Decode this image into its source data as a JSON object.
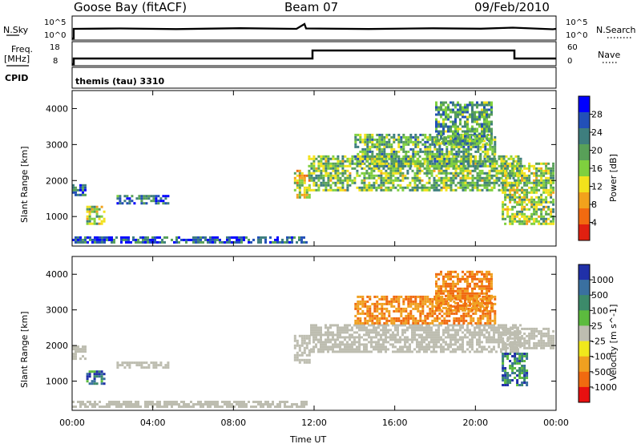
{
  "header": {
    "station": "Goose Bay (fitACF)",
    "beam": "Beam 07",
    "date": "09/Feb/2010"
  },
  "strip_labels": {
    "nsky": "N.Sky",
    "nsky_hi": "10^5",
    "nsky_lo": "10^0",
    "nsearch": "N.Search",
    "freq": "Freq.",
    "freq_unit": "[MHz]",
    "freq_hi": "18",
    "freq_lo": "8",
    "nave": "Nave",
    "nave_hi": "60",
    "nave_lo": "0",
    "cpid_label": "CPID",
    "cpid_value": "themis (tau) 3310"
  },
  "colors": {
    "power_scale": [
      "#0000ff",
      "#2250b8",
      "#3e7e7e",
      "#58a058",
      "#7fd03e",
      "#f2e21c",
      "#f2a21c",
      "#f26a10",
      "#e02010"
    ],
    "velocity_scale": [
      "#2030a8",
      "#3a70a0",
      "#3c8a6a",
      "#5cbb3e",
      "#bdbdb0",
      "#f0e81c",
      "#f0a020",
      "#f06a10",
      "#e81010"
    ],
    "ground_scatter": "#bdbdb0"
  },
  "chart_data": [
    {
      "type": "heatmap",
      "name": "power",
      "xlabel": "",
      "ylabel": "Slant Range [km]",
      "x_ticks": [
        "00:00",
        "04:00",
        "08:00",
        "12:00",
        "16:00",
        "20:00",
        "00:00"
      ],
      "y_ticks": [
        1000,
        2000,
        3000,
        4000
      ],
      "xlim_hours": [
        0,
        24
      ],
      "ylim_km": [
        180,
        4500
      ],
      "colorbar": {
        "label": "Power [dB]",
        "ticks": [
          "28",
          "24",
          "20",
          "16",
          "12",
          "8",
          "4"
        ]
      },
      "regions": [
        {
          "t": [
            0.0,
            11.6
          ],
          "r": [
            250,
            450
          ],
          "level": 0.15
        },
        {
          "t": [
            0.0,
            0.6
          ],
          "r": [
            1600,
            1900
          ],
          "level": 0.25
        },
        {
          "t": [
            0.7,
            1.6
          ],
          "r": [
            800,
            1300
          ],
          "level": 0.5
        },
        {
          "t": [
            2.2,
            4.8
          ],
          "r": [
            1350,
            1600
          ],
          "level": 0.2
        },
        {
          "t": [
            11.0,
            11.8
          ],
          "r": [
            1500,
            2300
          ],
          "level": 0.6
        },
        {
          "t": [
            11.7,
            22.2
          ],
          "r": [
            1700,
            2700
          ],
          "level": 0.45
        },
        {
          "t": [
            14.0,
            21.0
          ],
          "r": [
            2400,
            3300
          ],
          "level": 0.4
        },
        {
          "t": [
            18.0,
            20.8
          ],
          "r": [
            3000,
            4200
          ],
          "level": 0.35
        },
        {
          "t": [
            21.3,
            23.9
          ],
          "r": [
            800,
            2500
          ],
          "level": 0.5
        }
      ]
    },
    {
      "type": "heatmap",
      "name": "velocity",
      "xlabel": "Time UT",
      "ylabel": "Slant Range [km]",
      "x_ticks": [
        "00:00",
        "04:00",
        "08:00",
        "12:00",
        "16:00",
        "20:00",
        "00:00"
      ],
      "y_ticks": [
        1000,
        2000,
        3000,
        4000
      ],
      "xlim_hours": [
        0,
        24
      ],
      "ylim_km": [
        180,
        4500
      ],
      "colorbar": {
        "label": "Velocity [m s^-1]",
        "ticks": [
          "1000",
          "500",
          "100",
          "25",
          "-25",
          "-100",
          "-500",
          "-1000"
        ]
      },
      "regions": [
        {
          "t": [
            0.0,
            11.6
          ],
          "r": [
            250,
            450
          ],
          "kind": "ground"
        },
        {
          "t": [
            0.0,
            0.6
          ],
          "r": [
            1600,
            2000
          ],
          "kind": "ground"
        },
        {
          "t": [
            0.7,
            1.6
          ],
          "r": [
            900,
            1300
          ],
          "kind": "flow"
        },
        {
          "t": [
            2.2,
            4.8
          ],
          "r": [
            1350,
            1550
          ],
          "kind": "ground"
        },
        {
          "t": [
            11.0,
            11.8
          ],
          "r": [
            1500,
            2300
          ],
          "kind": "ground"
        },
        {
          "t": [
            11.8,
            22.2
          ],
          "r": [
            1800,
            2600
          ],
          "kind": "ground"
        },
        {
          "t": [
            14.0,
            21.0
          ],
          "r": [
            2600,
            3400
          ],
          "kind": "toward"
        },
        {
          "t": [
            18.0,
            20.8
          ],
          "r": [
            3000,
            4100
          ],
          "kind": "toward"
        },
        {
          "t": [
            21.3,
            23.9
          ],
          "r": [
            1900,
            2500
          ],
          "kind": "ground"
        },
        {
          "t": [
            21.3,
            22.6
          ],
          "r": [
            900,
            1800
          ],
          "kind": "flow"
        }
      ]
    }
  ]
}
